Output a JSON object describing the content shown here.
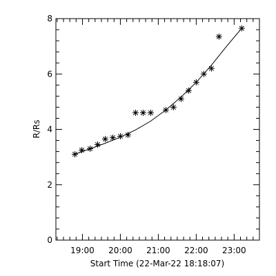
{
  "chart_data": {
    "type": "scatter",
    "title": "",
    "xlabel": "Start Time (22-Mar-22 18:18:07)",
    "ylabel": "R/Rs",
    "x_unit": "time",
    "xlim": [
      "18:18",
      "23:40"
    ],
    "ylim": [
      0,
      8
    ],
    "x_ticks": [
      "19:00",
      "20:00",
      "21:00",
      "22:00",
      "23:00"
    ],
    "y_ticks": [
      "0",
      "2",
      "4",
      "6",
      "8"
    ],
    "grid": false,
    "legend": "none",
    "series": [
      {
        "marker": "asterisk",
        "x": [
          "18:48",
          "18:59",
          "19:12",
          "19:24",
          "19:36",
          "19:48",
          "20:00",
          "20:12",
          "20:24",
          "20:36",
          "20:48",
          "21:12",
          "21:24",
          "21:36",
          "21:48",
          "22:00",
          "22:12",
          "22:24",
          "22:36",
          "23:12"
        ],
        "y": [
          3.1,
          3.25,
          3.3,
          3.45,
          3.65,
          3.7,
          3.75,
          3.8,
          4.6,
          4.6,
          4.6,
          4.7,
          4.8,
          5.1,
          5.4,
          5.7,
          6.0,
          6.2,
          7.35,
          7.65
        ]
      },
      {
        "style": "line",
        "x": [
          "18:48",
          "19:12",
          "19:36",
          "20:00",
          "20:24",
          "20:48",
          "21:12",
          "21:36",
          "22:00",
          "22:24",
          "22:48",
          "23:12"
        ],
        "y": [
          3.1,
          3.3,
          3.5,
          3.72,
          3.98,
          4.3,
          4.7,
          5.17,
          5.7,
          6.32,
          7.0,
          7.65
        ]
      }
    ]
  }
}
